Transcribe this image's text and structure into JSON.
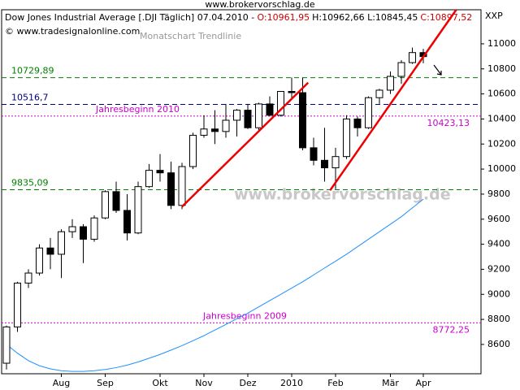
{
  "chart_data": {
    "type": "candlestick",
    "site": "www.brokervorschlag.de",
    "title": "Dow Jones Industrial Average [.DJI  Täglich] 07.04.2010 -",
    "ohlc_open": "O:10961,95",
    "ohlc_high_low": "H:10962,66 L:10845,45",
    "ohlc_close": "C:10897,52",
    "copyright": "© www.tradesignalonline.com",
    "subtitle": "Monatschart Trendlinie",
    "axis_code": "XXP",
    "watermark": "www.brokervorschlag.de",
    "categories": [
      null,
      null,
      null,
      null,
      null,
      "Aug",
      null,
      null,
      null,
      "Sep",
      null,
      null,
      null,
      null,
      "Okt",
      null,
      null,
      null,
      "Nov",
      null,
      null,
      null,
      "Dez",
      null,
      null,
      null,
      "2010",
      null,
      null,
      null,
      "Feb",
      null,
      null,
      null,
      null,
      "Mär",
      null,
      null,
      "Apr"
    ],
    "open": [
      8450,
      8740,
      9090,
      9170,
      9370,
      9320,
      9500,
      9540,
      9440,
      9610,
      9820,
      9670,
      9490,
      9860,
      9990,
      9970,
      9710,
      10020,
      10270,
      10320,
      10300,
      10390,
      10470,
      10330,
      10520,
      10430,
      10620,
      10610,
      10170,
      10070,
      10010,
      10100,
      10400,
      10330,
      10570,
      10630,
      10740,
      10850,
      10930
    ],
    "high": [
      8750,
      9100,
      9200,
      9400,
      9450,
      9520,
      9600,
      9560,
      9630,
      9830,
      9900,
      9800,
      9900,
      10040,
      10120,
      10060,
      10050,
      10290,
      10430,
      10470,
      10520,
      10480,
      10520,
      10530,
      10580,
      10620,
      10730,
      10730,
      10250,
      10330,
      10170,
      10430,
      10420,
      10580,
      10640,
      10780,
      10870,
      10970,
      10960
    ],
    "low": [
      8400,
      8700,
      9050,
      9150,
      9200,
      9130,
      9450,
      9250,
      9420,
      9600,
      9650,
      9430,
      9480,
      9850,
      9900,
      9680,
      9680,
      10000,
      10250,
      10200,
      10250,
      10260,
      10320,
      10310,
      10420,
      10420,
      10560,
      10150,
      10030,
      9900,
      9840,
      10080,
      10260,
      10320,
      10520,
      10600,
      10680,
      10840,
      10845
    ],
    "close": [
      8740,
      9090,
      9170,
      9370,
      9320,
      9500,
      9540,
      9440,
      9610,
      9820,
      9670,
      9490,
      9860,
      9990,
      9970,
      9710,
      10020,
      10270,
      10320,
      10300,
      10390,
      10470,
      10330,
      10520,
      10430,
      10620,
      10610,
      10170,
      10070,
      10010,
      10100,
      10400,
      10330,
      10570,
      10630,
      10740,
      10850,
      10930,
      10898
    ],
    "up_color": "#ffffff",
    "down_color": "#000000",
    "moving_average": {
      "color": "#1e90ff",
      "values": [
        8600,
        8530,
        8470,
        8430,
        8405,
        8390,
        8385,
        8385,
        8390,
        8400,
        8415,
        8435,
        8460,
        8490,
        8520,
        8555,
        8590,
        8630,
        8670,
        8715,
        8760,
        8805,
        8850,
        8900,
        8950,
        9000,
        9050,
        9100,
        9155,
        9210,
        9265,
        9320,
        9380,
        9440,
        9500,
        9560,
        9620,
        9690,
        9760
      ]
    },
    "trendlines": [
      {
        "color": "#ee0000",
        "x": [
          16,
          27.5
        ],
        "y": [
          9700,
          10690
        ]
      },
      {
        "color": "#ee0000",
        "x": [
          29.5,
          41
        ],
        "y": [
          9830,
          11272
        ]
      }
    ],
    "levels": [
      {
        "value": 10729.89,
        "label": "10729,89",
        "color": "#008000",
        "dash": "6,4"
      },
      {
        "value": 10516.7,
        "label": "10516,7",
        "color": "#000080",
        "dash": "6,4"
      },
      {
        "value": 10423.13,
        "label": "10423,13",
        "text": "Jahresbeginn 2010",
        "color": "#cc00cc",
        "dash": "2,2"
      },
      {
        "value": 9835.09,
        "label": "9835,09",
        "color": "#008000",
        "dash": "6,4"
      },
      {
        "value": 8772.25,
        "label": "8772,25",
        "text": "Jahresbeginn 2009",
        "color": "#cc00cc",
        "dash": "2,2"
      }
    ],
    "ylim": [
      8366,
      11272
    ],
    "yticks": [
      8600,
      8800,
      9000,
      9200,
      9400,
      9600,
      9800,
      10000,
      10200,
      10400,
      10600,
      10800,
      11000
    ]
  }
}
